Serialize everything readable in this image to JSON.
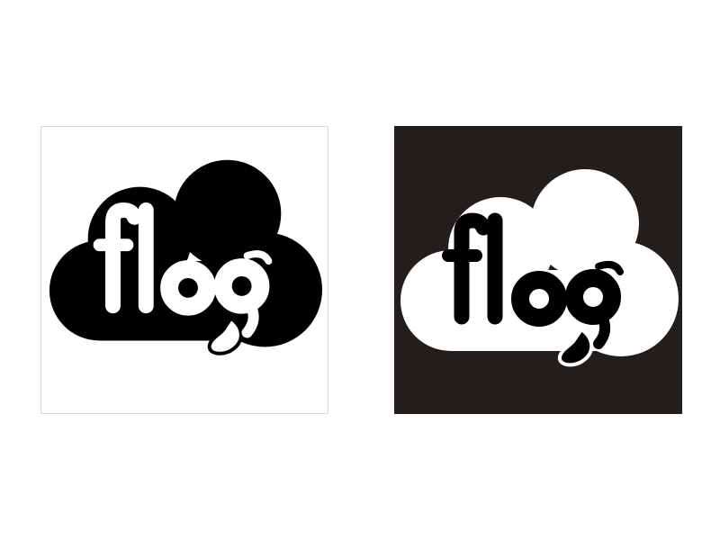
{
  "logo": {
    "wordmark": "flog",
    "colors": {
      "black": "#000000",
      "white": "#ffffff",
      "dark_background": "#231e1c",
      "frame_border": "#d9d9d9"
    }
  },
  "variants": [
    {
      "name": "positive",
      "background": "#ffffff",
      "cloud": "#000000",
      "letters": "#ffffff"
    },
    {
      "name": "negative",
      "background": "#231e1c",
      "cloud": "#ffffff",
      "letters": "#000000"
    }
  ]
}
